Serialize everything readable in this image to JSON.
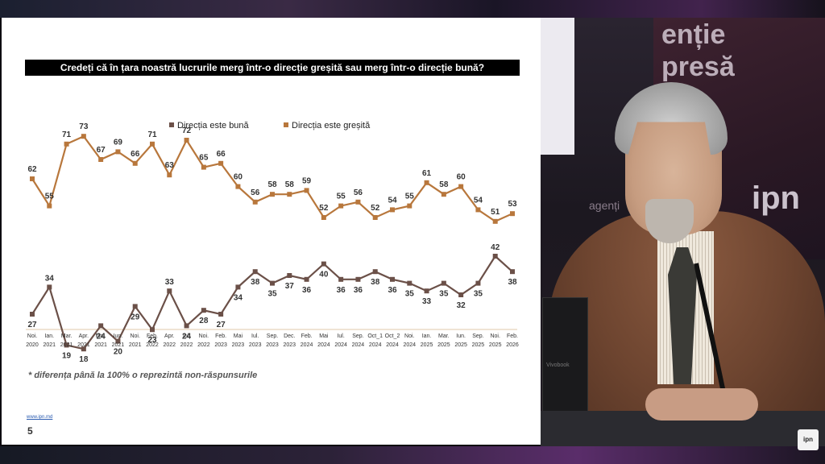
{
  "slide": {
    "title": "Credeți că în țara noastră lucrurile merg într-o direcție greșită sau merg într-o direcție bună?",
    "note": "* diferența până la 100% o reprezintă non-răspunsurile",
    "url": "www.ipn.md",
    "page_number": "5"
  },
  "chart_data": {
    "type": "line",
    "x": [
      "Noi. 2020",
      "Ian. 2021",
      "Mar. 2021",
      "Apr. 2021",
      "Mai. 2021",
      "Iun. 2021",
      "Noi. 2021",
      "Feb. 2022",
      "Apr. 2022",
      "Iul. 2022",
      "Noi. 2022",
      "Feb. 2023",
      "Mai 2023",
      "Iul. 2023",
      "Sep. 2023",
      "Dec. 2023",
      "Feb. 2024",
      "Mai 2024",
      "Iul. 2024",
      "Sep. 2024",
      "Oct_1 2024",
      "Oct_2 2024",
      "Noi. 2024",
      "Ian. 2025",
      "Mar. 2025",
      "Iun. 2025",
      "Sep. 2025",
      "Noi. 2025",
      "Feb. 2026"
    ],
    "x_top": [
      "Noi.",
      "Ian.",
      "Mar.",
      "Apr.",
      "Mai.",
      "Iun.",
      "Noi.",
      "Feb.",
      "Apr.",
      "Iul.",
      "Noi.",
      "Feb.",
      "Mai",
      "Iul.",
      "Sep.",
      "Dec.",
      "Feb.",
      "Mai",
      "Iul.",
      "Sep.",
      "Oct_1",
      "Oct_2",
      "Noi.",
      "Ian.",
      "Mar.",
      "Iun.",
      "Sep.",
      "Noi.",
      "Feb."
    ],
    "x_bottom": [
      "2020",
      "2021",
      "2021",
      "2021",
      "2021",
      "2021",
      "2021",
      "2022",
      "2022",
      "2022",
      "2022",
      "2023",
      "2023",
      "2023",
      "2023",
      "2023",
      "2024",
      "2024",
      "2024",
      "2024",
      "2024",
      "2024",
      "2024",
      "2025",
      "2025",
      "2025",
      "2025",
      "2025",
      "2026"
    ],
    "series": [
      {
        "name": "Direcția este bună",
        "color": "#6b5048",
        "values": [
          27,
          34,
          19,
          18,
          24,
          20,
          29,
          23,
          33,
          24,
          28,
          27,
          34,
          38,
          35,
          37,
          36,
          40,
          36,
          36,
          38,
          36,
          35,
          33,
          35,
          32,
          35,
          42,
          38
        ]
      },
      {
        "name": "Direcția este greșită",
        "color": "#b8773c",
        "values": [
          62,
          55,
          71,
          73,
          67,
          69,
          66,
          71,
          63,
          72,
          65,
          66,
          60,
          56,
          58,
          58,
          59,
          52,
          55,
          56,
          52,
          54,
          55,
          61,
          58,
          60,
          54,
          51,
          53
        ]
      }
    ],
    "legend_position": "top-left",
    "grid": false
  },
  "studio": {
    "wall_text_1": "enție",
    "wall_text_2": "presă",
    "brand": "ipn",
    "agency_text": "agenți",
    "laptop_text": "Vivobook",
    "corner_badge": "ipn"
  }
}
